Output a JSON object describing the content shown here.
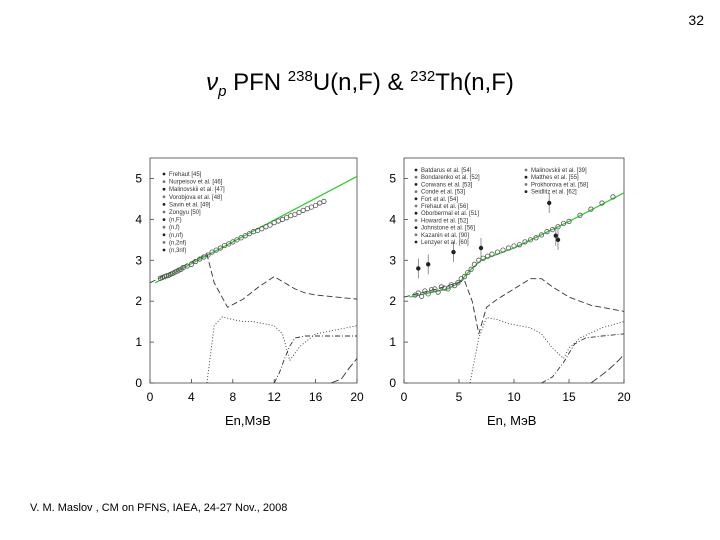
{
  "slide": {
    "number": "32",
    "title_nu": "ν",
    "title_p": "p",
    "title_pfn": " PFN ",
    "title_m1": "238",
    "title_r1": "U(n,F) & ",
    "title_m2": "232",
    "title_r2": "Th(n,F)",
    "footer": "V. M. Maslov ,   CM on PFNS, IAEA, 24-27 Nov., 2008"
  },
  "colors": {
    "fit": "#33cc33",
    "curves": "#333333",
    "points": "#555555"
  },
  "chart_data": [
    {
      "type": "line",
      "title": "238U(n,F)",
      "xlabel": "En,МэВ",
      "ylabel": "",
      "xlim": [
        0,
        20
      ],
      "ylim": [
        0,
        5.5
      ],
      "xticks": [
        0,
        4,
        8,
        12,
        16,
        20
      ],
      "yticks": [
        0,
        1,
        2,
        3,
        4,
        5
      ],
      "legend": [
        "Frehaut [45]",
        "Nurpeisov et al. [46]",
        "Malinovskii et al. [47]",
        "Vorobjova et al. [48]",
        "Savin et al. [49]",
        "Zongyu [50]",
        "(n,F)",
        "(n,f)",
        "(n,nf)",
        "(n,2nf)",
        "(n,3nf)"
      ],
      "series": [
        {
          "name": "(n,F)",
          "x": [
            0.5,
            20
          ],
          "y": [
            2.45,
            5.05
          ]
        },
        {
          "name": "(n,f)",
          "x": [
            0,
            5.5,
            6.2,
            7.5,
            9,
            10.5,
            12,
            13,
            14,
            15,
            16,
            18,
            20
          ],
          "y": [
            2.45,
            3.15,
            2.45,
            1.85,
            2.05,
            2.35,
            2.6,
            2.45,
            2.3,
            2.2,
            2.15,
            2.1,
            2.05
          ]
        },
        {
          "name": "(n,nf)",
          "x": [
            5.5,
            6.2,
            7,
            8,
            9,
            10,
            11,
            12,
            12.8,
            13.5,
            14.5,
            16,
            18,
            20
          ],
          "y": [
            0,
            1.4,
            1.62,
            1.55,
            1.5,
            1.5,
            1.45,
            1.4,
            1.2,
            0.55,
            0.9,
            1.2,
            1.3,
            1.4
          ]
        },
        {
          "name": "(n,2nf)",
          "x": [
            12,
            12.5,
            13,
            13.5,
            14,
            15,
            16,
            18,
            20
          ],
          "y": [
            0,
            0.25,
            0.6,
            0.9,
            1.1,
            1.15,
            1.15,
            1.15,
            1.15
          ]
        },
        {
          "name": "(n,3nf)",
          "x": [
            17.5,
            18.5,
            19.2,
            20
          ],
          "y": [
            0,
            0.1,
            0.35,
            0.6
          ]
        }
      ],
      "points": {
        "x": [
          1.0,
          1.2,
          1.4,
          1.6,
          1.8,
          2.0,
          2.2,
          2.4,
          2.6,
          2.8,
          3.0,
          3.2,
          3.6,
          4.0,
          4.4,
          4.8,
          5.2,
          5.6,
          6.0,
          6.4,
          6.8,
          7.2,
          7.6,
          8.0,
          8.4,
          8.8,
          9.2,
          9.6,
          10.0,
          10.4,
          10.8,
          11.2,
          11.6,
          12.0,
          12.4,
          12.8,
          13.2,
          13.6,
          14.0,
          14.4,
          14.8,
          15.2,
          15.6,
          16.0,
          16.4,
          16.8
        ],
        "y": [
          2.56,
          2.58,
          2.6,
          2.62,
          2.63,
          2.66,
          2.68,
          2.71,
          2.73,
          2.76,
          2.78,
          2.82,
          2.86,
          2.9,
          2.97,
          3.03,
          3.08,
          3.13,
          3.2,
          3.25,
          3.3,
          3.36,
          3.4,
          3.45,
          3.5,
          3.55,
          3.6,
          3.65,
          3.7,
          3.73,
          3.77,
          3.82,
          3.86,
          3.92,
          3.96,
          4.0,
          4.04,
          4.09,
          4.12,
          4.17,
          4.22,
          4.26,
          4.3,
          4.34,
          4.4,
          4.44
        ]
      }
    },
    {
      "type": "line",
      "title": "232Th(n,F)",
      "xlabel": "En, МэВ",
      "ylabel": "",
      "xlim": [
        0,
        20
      ],
      "ylim": [
        0,
        5.5
      ],
      "xticks": [
        0,
        5,
        10,
        15,
        20
      ],
      "yticks": [
        0,
        1,
        2,
        3,
        4,
        5
      ],
      "legend": [
        "Batdarus et al. [54]",
        "Bondarenko et al. [52]",
        "Conwans et al. [53]",
        "Conde et al. [53]",
        "Fort et al. [54]",
        "Frehaut et al. [56]",
        "Oborbermal et al. [51]",
        "Howard et al. [52]",
        "Johnstone et al. [56]",
        "Kazanin et al. [90]",
        "Lenzyer et al. [60]",
        "Malinovskii et al. [39]",
        "Matthes et al. [55]",
        "Prokhorova et al. [58]",
        "Seidlitz et al. [62]"
      ],
      "series": [
        {
          "name": "(n,F)",
          "x": [
            0.5,
            4,
            5,
            6,
            7,
            10,
            15,
            20
          ],
          "y": [
            2.1,
            2.3,
            2.45,
            2.75,
            3.0,
            3.3,
            3.95,
            4.65
          ]
        },
        {
          "name": "(n,f)",
          "x": [
            0,
            3,
            5.5,
            6.2,
            6.8,
            7.5,
            8.5,
            10,
            11.5,
            12.5,
            13.5,
            15,
            17,
            20
          ],
          "y": [
            2.1,
            2.3,
            2.5,
            2.0,
            1.2,
            1.85,
            2.05,
            2.3,
            2.55,
            2.55,
            2.35,
            2.1,
            1.9,
            1.75
          ]
        },
        {
          "name": "(n,nf)",
          "x": [
            6,
            6.8,
            7.5,
            8.5,
            9.5,
            10.5,
            11.5,
            12.5,
            13.5,
            14.5,
            15,
            16,
            18,
            20
          ],
          "y": [
            0,
            1.1,
            1.6,
            1.55,
            1.45,
            1.4,
            1.35,
            1.2,
            0.85,
            0.6,
            0.85,
            1.1,
            1.35,
            1.5
          ]
        },
        {
          "name": "(n,2nf)",
          "x": [
            12.5,
            13.5,
            14.5,
            15.5,
            16.5,
            18,
            20
          ],
          "y": [
            0,
            0.15,
            0.5,
            0.95,
            1.1,
            1.15,
            1.2
          ]
        },
        {
          "name": "(n,3nf)",
          "x": [
            17,
            18.5,
            19.5,
            20
          ],
          "y": [
            0,
            0.3,
            0.55,
            0.7
          ]
        }
      ],
      "points": {
        "x": [
          1.0,
          1.3,
          1.6,
          1.9,
          2.2,
          2.5,
          2.8,
          3.1,
          3.4,
          3.7,
          4.0,
          4.3,
          4.6,
          4.9,
          5.2,
          5.5,
          5.8,
          6.1,
          6.4,
          6.8,
          7.2,
          7.6,
          8.0,
          8.5,
          9.0,
          9.5,
          10.0,
          10.5,
          11.0,
          11.5,
          12.0,
          12.5,
          13.0,
          13.5,
          14.0,
          14.5,
          15.0,
          16.0,
          17.0,
          18.0,
          19.0
        ],
        "y": [
          2.15,
          2.2,
          2.12,
          2.25,
          2.18,
          2.28,
          2.3,
          2.22,
          2.35,
          2.32,
          2.3,
          2.4,
          2.38,
          2.45,
          2.55,
          2.6,
          2.7,
          2.78,
          2.9,
          3.0,
          3.05,
          3.1,
          3.15,
          3.2,
          3.25,
          3.3,
          3.35,
          3.38,
          3.45,
          3.5,
          3.55,
          3.62,
          3.7,
          3.75,
          3.82,
          3.9,
          3.95,
          4.1,
          4.25,
          4.4,
          4.55
        ]
      },
      "outliers": {
        "x": [
          1.3,
          2.2,
          4.5,
          7.0,
          13.2,
          13.8,
          14.0
        ],
        "y": [
          2.8,
          2.9,
          3.2,
          3.3,
          4.4,
          3.6,
          3.5
        ]
      }
    }
  ]
}
